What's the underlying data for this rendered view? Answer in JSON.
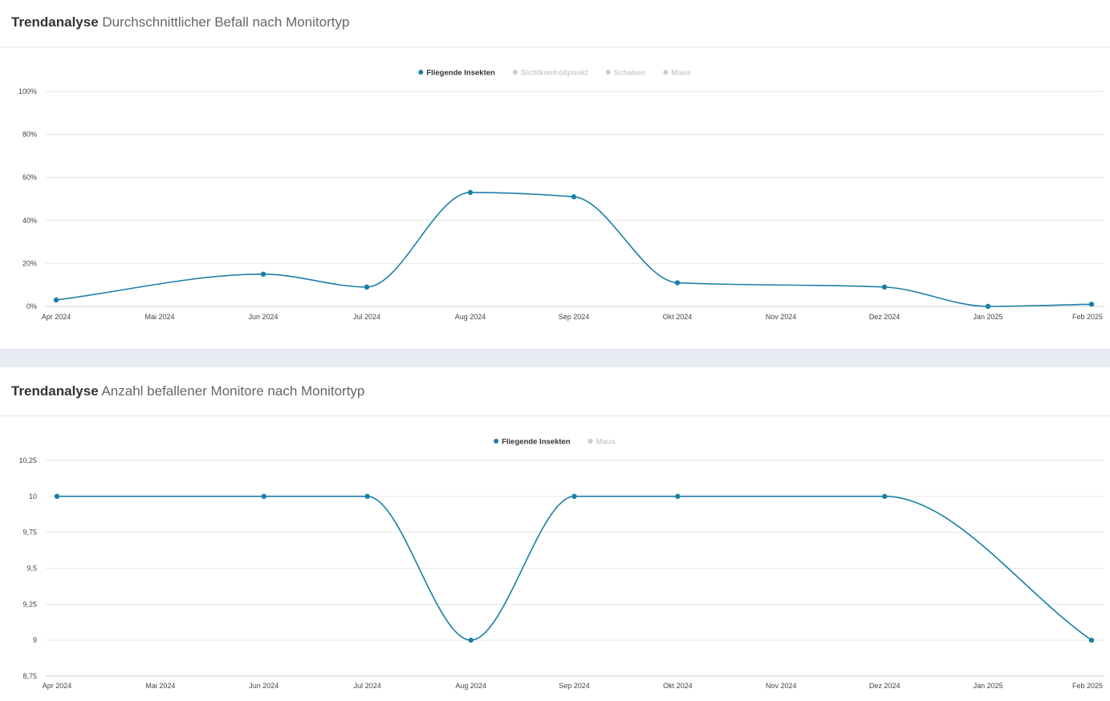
{
  "panels": [
    {
      "title_bold": "Trendanalyse",
      "title_rest": "Durchschnittlicher Befall nach Monitortyp"
    },
    {
      "title_bold": "Trendanalyse",
      "title_rest": "Anzahl befallener Monitore nach Monitortyp"
    }
  ],
  "colors": {
    "series": "#1b7fa8",
    "inactive": "#cccccc",
    "grid": "#e6e6e6"
  },
  "chart_data": [
    {
      "type": "line",
      "title": "Trendanalyse Durchschnittlicher Befall nach Monitortyp",
      "categories": [
        "Apr 2024",
        "Mai 2024",
        "Jun 2024",
        "Jul 2024",
        "Aug 2024",
        "Sep 2024",
        "Okt 2024",
        "Nov 2024",
        "Dez 2024",
        "Jan 2025",
        "Feb 2025"
      ],
      "y_ticks": [
        "0%",
        "20%",
        "40%",
        "60%",
        "80%",
        "100%"
      ],
      "ylim": [
        0,
        100
      ],
      "legend": [
        {
          "name": "Fliegende Insekten",
          "active": true
        },
        {
          "name": "Sichtkontrollpunkt",
          "active": false
        },
        {
          "name": "Schaben",
          "active": false
        },
        {
          "name": "Maus",
          "active": false
        }
      ],
      "legend_position": "top-center",
      "grid": true,
      "series": [
        {
          "name": "Fliegende Insekten",
          "points": [
            [
              "Apr 2024",
              3
            ],
            [
              "Jun 2024",
              15
            ],
            [
              "Jul 2024",
              9
            ],
            [
              "Aug 2024",
              53
            ],
            [
              "Sep 2024",
              51
            ],
            [
              "Okt 2024",
              11
            ],
            [
              "Dez 2024",
              9
            ],
            [
              "Jan 2025",
              0
            ],
            [
              "Feb 2025",
              1
            ]
          ]
        }
      ]
    },
    {
      "type": "line",
      "title": "Trendanalyse Anzahl befallener Monitore nach Monitortyp",
      "categories": [
        "Apr 2024",
        "Mai 2024",
        "Jun 2024",
        "Jul 2024",
        "Aug 2024",
        "Sep 2024",
        "Okt 2024",
        "Nov 2024",
        "Dez 2024",
        "Jan 2025",
        "Feb 2025"
      ],
      "y_ticks": [
        "8,75",
        "9",
        "9,25",
        "9,5",
        "9,75",
        "10",
        "10,25"
      ],
      "ylim": [
        8.75,
        10.25
      ],
      "legend": [
        {
          "name": "Fliegende Insekten",
          "active": true
        },
        {
          "name": "Maus",
          "active": false
        }
      ],
      "legend_position": "top-center",
      "grid": true,
      "series": [
        {
          "name": "Fliegende Insekten",
          "points": [
            [
              "Apr 2024",
              10
            ],
            [
              "Jun 2024",
              10
            ],
            [
              "Jul 2024",
              10
            ],
            [
              "Aug 2024",
              9
            ],
            [
              "Sep 2024",
              10
            ],
            [
              "Okt 2024",
              10
            ],
            [
              "Dez 2024",
              10
            ],
            [
              "Feb 2025",
              9
            ]
          ]
        }
      ]
    }
  ]
}
